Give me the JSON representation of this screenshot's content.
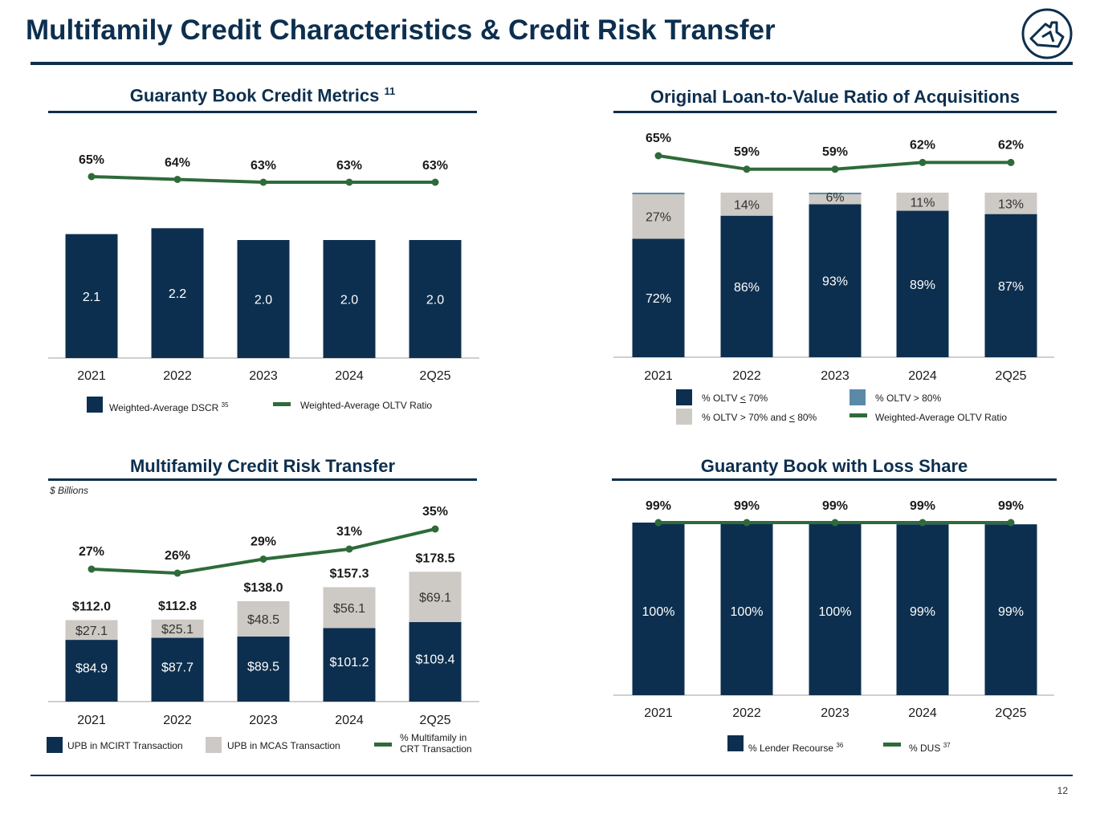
{
  "page": {
    "title": "Multifamily Credit Characteristics & Credit Risk Transfer",
    "page_number": "12"
  },
  "colors": {
    "navy": "#0d2f4f",
    "gray": "#cdc9c4",
    "green": "#2e6b3a",
    "steel": "#5b8aa8"
  },
  "chart_data": [
    {
      "id": "dscr",
      "type": "bar",
      "title": "Guaranty Book Credit Metrics",
      "title_footnote": "11",
      "categories": [
        "2021",
        "2022",
        "2023",
        "2024",
        "2Q25"
      ],
      "series": [
        {
          "name": "Weighted-Average DSCR",
          "type": "bar",
          "values": [
            2.1,
            2.2,
            2.0,
            2.0,
            2.0
          ],
          "labels": [
            "2.1",
            "2.2",
            "2.0",
            "2.0",
            "2.0"
          ]
        },
        {
          "name": "Weighted-Average OLTV Ratio",
          "type": "line",
          "values": [
            65,
            64,
            63,
            63,
            63
          ],
          "labels": [
            "65%",
            "64%",
            "63%",
            "63%",
            "63%"
          ]
        }
      ],
      "legend": [
        {
          "label": "Weighted-Average DSCR",
          "footnote": "35",
          "kind": "bar"
        },
        {
          "label": "Weighted-Average OLTV Ratio",
          "kind": "line"
        }
      ]
    },
    {
      "id": "oltv",
      "type": "bar",
      "stacked": true,
      "title": "Original Loan-to-Value Ratio of Acquisitions",
      "categories": [
        "2021",
        "2022",
        "2023",
        "2024",
        "2Q25"
      ],
      "series": [
        {
          "name": "% OLTV < 70%",
          "values": [
            72,
            86,
            93,
            89,
            87
          ],
          "labels": [
            "72%",
            "86%",
            "93%",
            "89%",
            "87%"
          ]
        },
        {
          "name": "% OLTV > 70% and < 80%",
          "values": [
            27,
            14,
            6,
            11,
            13
          ],
          "labels": [
            "27%",
            "14%",
            "6%",
            "11%",
            "13%"
          ]
        },
        {
          "name": "% OLTV > 80%",
          "values": [
            1,
            0,
            1,
            0,
            0
          ],
          "labels": []
        },
        {
          "name": "Weighted-Average OLTV Ratio",
          "type": "line",
          "values": [
            65,
            59,
            59,
            62,
            62
          ],
          "labels": [
            "65%",
            "59%",
            "59%",
            "62%",
            "62%"
          ]
        }
      ],
      "legend": [
        {
          "prefix": "% OLTV ",
          "op": "<",
          "rest": " 70%",
          "kind": "bar"
        },
        {
          "prefix": "% OLTV > 70% and ",
          "op": "<",
          "rest": " 80%",
          "kind": "bar"
        },
        {
          "prefix": "% OLTV > 80%",
          "op": "",
          "rest": "",
          "kind": "bar"
        },
        {
          "prefix": "Weighted-Average OLTV Ratio",
          "op": "",
          "rest": "",
          "kind": "line"
        }
      ]
    },
    {
      "id": "crt",
      "type": "bar",
      "stacked": true,
      "title": "Multifamily Credit Risk Transfer",
      "units": "$ Billions",
      "categories": [
        "2021",
        "2022",
        "2023",
        "2024",
        "2Q25"
      ],
      "series": [
        {
          "name": "UPB in MCIRT Transaction",
          "values": [
            84.9,
            87.7,
            89.5,
            101.2,
            109.4
          ],
          "labels": [
            "$84.9",
            "$87.7",
            "$89.5",
            "$101.2",
            "$109.4"
          ]
        },
        {
          "name": "UPB in MCAS Transaction",
          "values": [
            27.1,
            25.1,
            48.5,
            56.1,
            69.1
          ],
          "labels": [
            "$27.1",
            "$25.1",
            "$48.5",
            "$56.1",
            "$69.1"
          ]
        },
        {
          "name": "% Multifamily in CRT Transaction",
          "type": "line",
          "values": [
            27,
            26,
            29,
            31,
            35
          ],
          "labels": [
            "27%",
            "26%",
            "29%",
            "31%",
            "35%"
          ]
        }
      ],
      "totals": [
        "$112.0",
        "$112.8",
        "$138.0",
        "$157.3",
        "$178.5"
      ],
      "legend": [
        {
          "label": "UPB in MCIRT Transaction",
          "kind": "bar"
        },
        {
          "label": "UPB in MCAS Transaction",
          "kind": "bar"
        },
        {
          "label_line1": "% Multifamily in",
          "label_line2": "CRT Transaction",
          "kind": "line"
        }
      ]
    },
    {
      "id": "loss",
      "type": "bar",
      "title": "Guaranty Book with Loss Share",
      "categories": [
        "2021",
        "2022",
        "2023",
        "2024",
        "2Q25"
      ],
      "series": [
        {
          "name": "% Lender Recourse",
          "values": [
            100,
            100,
            100,
            99,
            99
          ],
          "labels": [
            "100%",
            "100%",
            "100%",
            "99%",
            "99%"
          ]
        },
        {
          "name": "% DUS",
          "type": "line",
          "values": [
            99,
            99,
            99,
            99,
            99
          ],
          "labels": [
            "99%",
            "99%",
            "99%",
            "99%",
            "99%"
          ]
        }
      ],
      "legend": [
        {
          "label": "% Lender Recourse",
          "footnote": "36",
          "kind": "bar"
        },
        {
          "label": "% DUS",
          "footnote": "37",
          "kind": "line"
        }
      ]
    }
  ]
}
